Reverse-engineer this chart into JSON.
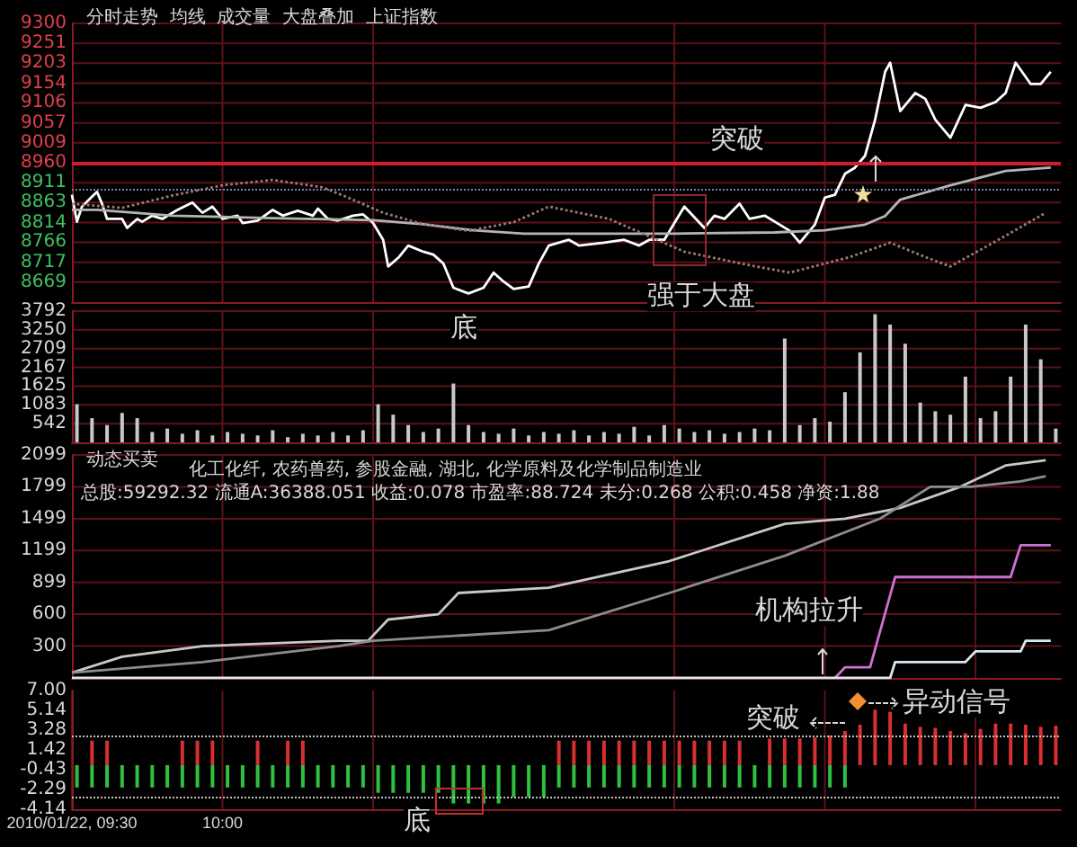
{
  "chart_data": [
    {
      "type": "line",
      "title": "分时走势  均线  成交量  大盘叠加  上证指数",
      "xlim": [
        "2010-01-22T09:30",
        "2010-01-22T12:47"
      ],
      "xticks": [
        "2010-01-22T10:00",
        "2010-01-22T10:30",
        "2010-01-22T11:30",
        "2010-01-22T12:00",
        "2010-01-22T12:30"
      ],
      "ylim": [
        8620,
        9300
      ],
      "yticks": [
        8669,
        8717,
        8766,
        8814,
        8863,
        8911,
        8960,
        9009,
        9057,
        9106,
        9154,
        9203,
        9251,
        9300
      ],
      "tick_labels": "y",
      "grid": true,
      "series": [
        {
          "color": "#ffffff",
          "x": [
            "2010-01-22T09:30",
            "2010-01-22T09:31",
            "2010-01-22T09:32",
            "2010-01-22T09:35",
            "2010-01-22T09:36",
            "2010-01-22T09:37",
            "2010-01-22T09:40",
            "2010-01-22T09:41",
            "2010-01-22T09:43",
            "2010-01-22T09:44",
            "2010-01-22T09:46",
            "2010-01-22T09:48",
            "2010-01-22T09:51",
            "2010-01-22T09:54",
            "2010-01-22T09:56",
            "2010-01-22T09:58",
            "2010-01-22T10:00",
            "2010-01-22T10:03",
            "2010-01-22T10:04",
            "2010-01-22T10:07",
            "2010-01-22T10:10",
            "2010-01-22T10:12",
            "2010-01-22T10:15",
            "2010-01-22T10:18",
            "2010-01-22T10:19",
            "2010-01-22T10:21",
            "2010-01-22T10:23",
            "2010-01-22T10:26",
            "2010-01-22T10:28",
            "2010-01-22T10:30",
            "2010-01-22T10:32",
            "2010-01-22T10:33",
            "2010-01-22T10:35",
            "2010-01-22T10:37",
            "2010-01-22T10:40",
            "2010-01-22T10:42",
            "2010-01-22T10:44",
            "2010-01-22T10:46",
            "2010-01-22T10:49",
            "2010-01-22T10:52",
            "2010-01-22T10:54",
            "2010-01-22T10:56",
            "2010-01-22T10:58",
            "2010-01-22T11:01",
            "2010-01-22T11:03",
            "2010-01-22T11:05",
            "2010-01-22T11:09",
            "2010-01-22T11:11",
            "2010-01-22T11:16",
            "2010-01-22T11:20",
            "2010-01-22T11:23",
            "2010-01-22T11:25",
            "2010-01-22T11:28",
            "2010-01-22T11:32",
            "2010-01-22T11:36",
            "2010-01-22T11:38",
            "2010-01-22T11:40",
            "2010-01-22T11:43",
            "2010-01-22T11:45",
            "2010-01-22T11:48",
            "2010-01-22T11:51",
            "2010-01-22T11:53",
            "2010-01-22T11:55",
            "2010-01-22T11:58",
            "2010-01-22T12:00",
            "2010-01-22T12:02",
            "2010-01-22T12:04",
            "2010-01-22T12:06",
            "2010-01-22T12:08",
            "2010-01-22T12:10",
            "2010-01-22T12:12",
            "2010-01-22T12:13",
            "2010-01-22T12:15",
            "2010-01-22T12:18",
            "2010-01-22T12:20",
            "2010-01-22T12:22",
            "2010-01-22T12:25",
            "2010-01-22T12:28",
            "2010-01-22T12:31",
            "2010-01-22T12:34",
            "2010-01-22T12:36",
            "2010-01-22T12:38",
            "2010-01-22T12:41",
            "2010-01-22T12:43",
            "2010-01-22T12:45"
          ],
          "values": [
            8882,
            8816,
            8853,
            8889,
            8860,
            8823,
            8823,
            8801,
            8823,
            8816,
            8831,
            8823,
            8845,
            8863,
            8838,
            8853,
            8823,
            8831,
            8813,
            8819,
            8845,
            8831,
            8843,
            8831,
            8848,
            8823,
            8819,
            8831,
            8834,
            8813,
            8772,
            8707,
            8728,
            8758,
            8743,
            8736,
            8714,
            8655,
            8641,
            8655,
            8692,
            8670,
            8652,
            8658,
            8714,
            8758,
            8772,
            8758,
            8765,
            8772,
            8758,
            8772,
            8772,
            8853,
            8801,
            8831,
            8823,
            8860,
            8823,
            8831,
            8809,
            8794,
            8765,
            8809,
            8875,
            8882,
            8933,
            8948,
            8977,
            9065,
            9182,
            9204,
            9086,
            9130,
            9116,
            9065,
            9021,
            9101,
            9094,
            9108,
            9130,
            9204,
            9152,
            9152,
            9182
          ]
        },
        {
          "color": "#b4b4b4",
          "x": [
            "2010-01-22T09:30",
            "2010-01-22T09:35",
            "2010-01-22T09:50",
            "2010-01-22T10:10",
            "2010-01-22T10:30",
            "2010-01-22T10:40",
            "2010-01-22T10:50",
            "2010-01-22T11:00",
            "2010-01-22T11:10",
            "2010-01-22T11:30",
            "2010-01-22T11:50",
            "2010-01-22T12:00",
            "2010-01-22T12:08",
            "2010-01-22T12:12",
            "2010-01-22T12:15",
            "2010-01-22T12:25",
            "2010-01-22T12:36",
            "2010-01-22T12:45"
          ],
          "values": [
            8845,
            8845,
            8831,
            8825,
            8820,
            8810,
            8795,
            8787,
            8787,
            8787,
            8790,
            8795,
            8809,
            8830,
            8870,
            8905,
            8940,
            8948
          ]
        },
        {
          "color": "#a07878",
          "line_style": "dotted",
          "x": [
            "2010-01-22T09:30",
            "2010-01-22T09:40",
            "2010-01-22T09:50",
            "2010-01-22T10:00",
            "2010-01-22T10:10",
            "2010-01-22T10:20",
            "2010-01-22T10:25",
            "2010-01-22T10:32",
            "2010-01-22T10:40",
            "2010-01-22T10:49",
            "2010-01-22T10:58",
            "2010-01-22T11:05",
            "2010-01-22T11:17",
            "2010-01-22T11:32",
            "2010-01-22T11:45",
            "2010-01-22T11:53",
            "2010-01-22T12:05",
            "2010-01-22T12:13",
            "2010-01-22T12:20",
            "2010-01-22T12:25",
            "2010-01-22T12:35",
            "2010-01-22T12:44"
          ],
          "values": [
            8860,
            8850,
            8880,
            8905,
            8918,
            8900,
            8875,
            8838,
            8810,
            8794,
            8815,
            8853,
            8823,
            8743,
            8710,
            8692,
            8730,
            8765,
            8730,
            8707,
            8775,
            8838
          ]
        }
      ],
      "ref_lines": [
        {
          "axis": "y",
          "value": 8960,
          "color": "#d01c2c"
        },
        {
          "axis": "y",
          "value": 8897,
          "color": "#8080a0",
          "line_style": "dotted"
        }
      ],
      "annotations": [
        "底",
        "强于大盘",
        "突破"
      ]
    },
    {
      "type": "bar",
      "xlim": [
        "2010-01-22T09:30",
        "2010-01-22T12:47"
      ],
      "xticks": [
        "2010-01-22T10:00",
        "2010-01-22T10:30",
        "2010-01-22T11:30",
        "2010-01-22T12:00",
        "2010-01-22T12:30"
      ],
      "ylim": [
        0,
        3792
      ],
      "yticks": [
        542,
        1083,
        1625,
        2167,
        2709,
        3250,
        3792
      ],
      "tick_labels": "y",
      "grid": true,
      "color": "#c8c8c8",
      "x": [
        "2010-01-22T09:31",
        "2010-01-22T09:34",
        "2010-01-22T09:37",
        "2010-01-22T09:40",
        "2010-01-22T09:43",
        "2010-01-22T09:46",
        "2010-01-22T09:49",
        "2010-01-22T09:52",
        "2010-01-22T09:55",
        "2010-01-22T09:58",
        "2010-01-22T10:01",
        "2010-01-22T10:04",
        "2010-01-22T10:07",
        "2010-01-22T10:10",
        "2010-01-22T10:13",
        "2010-01-22T10:16",
        "2010-01-22T10:19",
        "2010-01-22T10:22",
        "2010-01-22T10:25",
        "2010-01-22T10:28",
        "2010-01-22T10:31",
        "2010-01-22T10:34",
        "2010-01-22T10:37",
        "2010-01-22T10:40",
        "2010-01-22T10:43",
        "2010-01-22T10:46",
        "2010-01-22T10:49",
        "2010-01-22T10:52",
        "2010-01-22T10:55",
        "2010-01-22T10:58",
        "2010-01-22T11:01",
        "2010-01-22T11:04",
        "2010-01-22T11:07",
        "2010-01-22T11:10",
        "2010-01-22T11:13",
        "2010-01-22T11:16",
        "2010-01-22T11:19",
        "2010-01-22T11:22",
        "2010-01-22T11:25",
        "2010-01-22T11:28",
        "2010-01-22T11:31",
        "2010-01-22T11:34",
        "2010-01-22T11:37",
        "2010-01-22T11:40",
        "2010-01-22T11:43",
        "2010-01-22T11:46",
        "2010-01-22T11:49",
        "2010-01-22T11:52",
        "2010-01-22T11:55",
        "2010-01-22T11:58",
        "2010-01-22T12:01",
        "2010-01-22T12:04",
        "2010-01-22T12:07",
        "2010-01-22T12:10",
        "2010-01-22T12:13",
        "2010-01-22T12:16",
        "2010-01-22T12:19",
        "2010-01-22T12:22",
        "2010-01-22T12:25",
        "2010-01-22T12:28",
        "2010-01-22T12:31",
        "2010-01-22T12:34",
        "2010-01-22T12:37",
        "2010-01-22T12:40",
        "2010-01-22T12:43",
        "2010-01-22T12:46"
      ],
      "values": [
        1100,
        700,
        500,
        850,
        700,
        300,
        400,
        250,
        350,
        200,
        300,
        250,
        200,
        350,
        150,
        250,
        200,
        300,
        200,
        350,
        1100,
        800,
        500,
        300,
        400,
        1700,
        500,
        300,
        250,
        400,
        200,
        300,
        250,
        350,
        200,
        300,
        250,
        450,
        200,
        500,
        400,
        300,
        350,
        250,
        300,
        400,
        350,
        3000,
        500,
        700,
        600,
        1450,
        2600,
        3700,
        3400,
        2850,
        1150,
        900,
        800,
        1900,
        700,
        900,
        1900,
        3400,
        2400,
        400
      ]
    },
    {
      "type": "line",
      "title": "动态买卖",
      "xlim": [
        "2010-01-22T09:30",
        "2010-01-22T12:47"
      ],
      "xticks": [
        "2010-01-22T10:00",
        "2010-01-22T10:30",
        "2010-01-22T11:30",
        "2010-01-22T12:00",
        "2010-01-22T12:30"
      ],
      "ylim": [
        0,
        2099
      ],
      "yticks": [
        300,
        600,
        899,
        1199,
        1499,
        1799,
        2099
      ],
      "tick_labels": "y",
      "grid": true,
      "series": [
        {
          "color": "#c8c8c8",
          "x": [
            "2010-01-22T09:30",
            "2010-01-22T09:40",
            "2010-01-22T09:56",
            "2010-01-22T10:23",
            "2010-01-22T10:29",
            "2010-01-22T10:33",
            "2010-01-22T10:43",
            "2010-01-22T10:47",
            "2010-01-22T11:05",
            "2010-01-22T11:29",
            "2010-01-22T11:52",
            "2010-01-22T12:04",
            "2010-01-22T12:15",
            "2010-01-22T12:27",
            "2010-01-22T12:36",
            "2010-01-22T12:44"
          ],
          "values": [
            50,
            200,
            300,
            350,
            350,
            550,
            600,
            800,
            850,
            1100,
            1450,
            1500,
            1600,
            1800,
            2000,
            2050
          ]
        },
        {
          "color": "#8c8c8c",
          "x": [
            "2010-01-22T09:30",
            "2010-01-22T09:56",
            "2010-01-22T10:23",
            "2010-01-22T10:30",
            "2010-01-22T11:05",
            "2010-01-22T11:29",
            "2010-01-22T11:52",
            "2010-01-22T12:11",
            "2010-01-22T12:21",
            "2010-01-22T12:29",
            "2010-01-22T12:39",
            "2010-01-22T12:44"
          ],
          "values": [
            50,
            150,
            300,
            350,
            450,
            800,
            1150,
            1500,
            1800,
            1800,
            1850,
            1900
          ]
        },
        {
          "color": "#d070d0",
          "x": [
            "2010-01-22T12:02",
            "2010-01-22T12:04",
            "2010-01-22T12:09",
            "2010-01-22T12:14",
            "2010-01-22T12:37",
            "2010-01-22T12:39",
            "2010-01-22T12:45"
          ],
          "values": [
            0,
            100,
            100,
            950,
            950,
            1250,
            1250
          ]
        },
        {
          "color": "#d8e8f0",
          "x": [
            "2010-01-22T09:30",
            "2010-01-22T12:13",
            "2010-01-22T12:14",
            "2010-01-22T12:28",
            "2010-01-22T12:30",
            "2010-01-22T12:39",
            "2010-01-22T12:40",
            "2010-01-22T12:45"
          ],
          "values": [
            0,
            0,
            150,
            150,
            250,
            250,
            350,
            350
          ]
        }
      ],
      "annotations": [
        "化工化纤, 农药兽药, 参股金融, 湖北, 化学原料及化学制品制造业",
        "总股:59292.32  流通A:36388.051  收益:0.078  市盈率:88.724  未分:0.268  公积:0.458  净资:1.88",
        "机构拉升"
      ]
    },
    {
      "type": "bar",
      "xlim": [
        "2010-01-22T09:30",
        "2010-01-22T12:47"
      ],
      "xticks": [
        {
          "value": "2010-01-22T09:30",
          "label": "2010/01/22, 09:30"
        },
        {
          "value": "2010-01-22T10:00",
          "label": "10:00"
        },
        {
          "value": "2010-01-22T10:30",
          "label": null
        },
        {
          "value": "2010-01-22T11:30",
          "label": null
        },
        {
          "value": "2010-01-22T12:00",
          "label": null
        },
        {
          "value": "2010-01-22T12:30",
          "label": null
        }
      ],
      "ylim": [
        -4.14,
        7
      ],
      "yticks": [
        {
          "value": -4.14,
          "label": "-4.14"
        },
        {
          "value": -2.29,
          "label": "-2.29"
        },
        {
          "value": -0.43,
          "label": "-0.43"
        },
        {
          "value": 1.42,
          "label": "1.42"
        },
        {
          "value": 3.28,
          "label": "3.28"
        },
        {
          "value": 5.14,
          "label": "5.14"
        },
        {
          "value": 7,
          "label": "7.00"
        }
      ],
      "grid": "x",
      "x": [
        "2010-01-22T09:31",
        "2010-01-22T09:34",
        "2010-01-22T09:37",
        "2010-01-22T09:40",
        "2010-01-22T09:43",
        "2010-01-22T09:46",
        "2010-01-22T09:49",
        "2010-01-22T09:52",
        "2010-01-22T09:55",
        "2010-01-22T09:58",
        "2010-01-22T10:01",
        "2010-01-22T10:04",
        "2010-01-22T10:07",
        "2010-01-22T10:10",
        "2010-01-22T10:13",
        "2010-01-22T10:16",
        "2010-01-22T10:19",
        "2010-01-22T10:22",
        "2010-01-22T10:25",
        "2010-01-22T10:28",
        "2010-01-22T10:31",
        "2010-01-22T10:34",
        "2010-01-22T10:37",
        "2010-01-22T10:40",
        "2010-01-22T10:43",
        "2010-01-22T10:46",
        "2010-01-22T10:49",
        "2010-01-22T10:52",
        "2010-01-22T10:55",
        "2010-01-22T10:58",
        "2010-01-22T11:01",
        "2010-01-22T11:04",
        "2010-01-22T11:07",
        "2010-01-22T11:10",
        "2010-01-22T11:13",
        "2010-01-22T11:16",
        "2010-01-22T11:19",
        "2010-01-22T11:22",
        "2010-01-22T11:25",
        "2010-01-22T11:28",
        "2010-01-22T11:31",
        "2010-01-22T11:34",
        "2010-01-22T11:37",
        "2010-01-22T11:40",
        "2010-01-22T11:43",
        "2010-01-22T11:46",
        "2010-01-22T11:49",
        "2010-01-22T11:52",
        "2010-01-22T11:55",
        "2010-01-22T11:58",
        "2010-01-22T12:01",
        "2010-01-22T12:04",
        "2010-01-22T12:07",
        "2010-01-22T12:10",
        "2010-01-22T12:13",
        "2010-01-22T12:16",
        "2010-01-22T12:19",
        "2010-01-22T12:22",
        "2010-01-22T12:25",
        "2010-01-22T12:28",
        "2010-01-22T12:31",
        "2010-01-22T12:34",
        "2010-01-22T12:37",
        "2010-01-22T12:40",
        "2010-01-22T12:43",
        "2010-01-22T12:46"
      ],
      "series": [
        {
          "color": "#d83030",
          "values": [
            null,
            2.3,
            2.3,
            null,
            null,
            null,
            null,
            2.3,
            2.3,
            2.3,
            null,
            null,
            2.3,
            null,
            2.3,
            2.3,
            null,
            null,
            null,
            null,
            null,
            null,
            null,
            null,
            null,
            null,
            null,
            null,
            null,
            null,
            null,
            null,
            2.3,
            2.3,
            2.3,
            2.3,
            2.3,
            2.3,
            2.3,
            2.3,
            2.3,
            2.3,
            2.3,
            2.3,
            2.3,
            null,
            2.5,
            2.5,
            2.5,
            2.6,
            2.8,
            3.2,
            3.8,
            5.2,
            5.0,
            3.9,
            3.6,
            3.5,
            3.2,
            3.0,
            3.4,
            3.9,
            3.9,
            3.8,
            3.6,
            3.7
          ]
        },
        {
          "color": "#30c040",
          "values": [
            -2.1,
            -2.1,
            -2.1,
            -2.1,
            -2.1,
            -2.1,
            -2.1,
            -2.1,
            -2.1,
            -2.1,
            -2.1,
            -2.1,
            -2.1,
            -2.1,
            -2.1,
            -2.1,
            -2.1,
            -2.1,
            -2.1,
            -2.1,
            -2.6,
            -2.6,
            -2.6,
            -2.6,
            -2.6,
            -3.6,
            -3.6,
            -3.6,
            -3.6,
            -3.0,
            -3.0,
            -3.0,
            -2.1,
            -2.1,
            -2.1,
            -2.1,
            -2.1,
            -2.1,
            -2.1,
            -2.1,
            -2.1,
            -2.1,
            -2.1,
            -2.1,
            -2.1,
            -2.1,
            -2.1,
            -2.1,
            -2.1,
            -2.1,
            -2.1,
            -2.1,
            null,
            null,
            null,
            null,
            null,
            null,
            null,
            null,
            null,
            null,
            null,
            null,
            null,
            null
          ]
        }
      ],
      "ref_lines": [
        {
          "axis": "y",
          "value": 2.8,
          "color": "#c0c0c0",
          "line_style": "dotted"
        },
        {
          "axis": "y",
          "value": -3.0,
          "color": "#c0c0c0",
          "line_style": "dotted"
        }
      ],
      "annotations": [
        "突破",
        "异动信号",
        "底"
      ]
    }
  ]
}
